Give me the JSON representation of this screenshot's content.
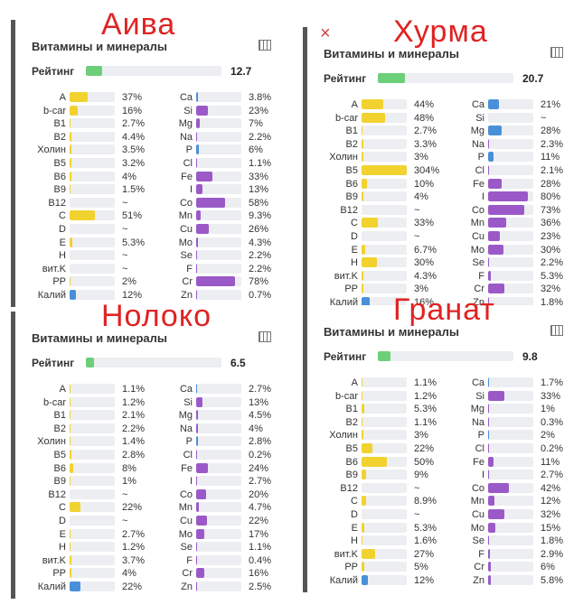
{
  "header": "Витамины и минералы",
  "rating_label": "Рейтинг",
  "rating_color": "#6ccf7a",
  "panels": [
    {
      "title": "Аива",
      "rating": 12.7,
      "left_color": "#f2d22e",
      "right_color": "#9b59c8",
      "left": [
        {
          "name": "A",
          "value": 37,
          "label": "37%"
        },
        {
          "name": "b-car",
          "value": 16,
          "label": "16%"
        },
        {
          "name": "B1",
          "value": 2.7,
          "label": "2.7%"
        },
        {
          "name": "B2",
          "value": 4.4,
          "label": "4.4%"
        },
        {
          "name": "Холин",
          "value": 3.5,
          "label": "3.5%"
        },
        {
          "name": "B5",
          "value": 3.2,
          "label": "3.2%"
        },
        {
          "name": "B6",
          "value": 4,
          "label": "4%"
        },
        {
          "name": "B9",
          "value": 1.5,
          "label": "1.5%"
        },
        {
          "name": "B12",
          "value": null,
          "label": "~"
        },
        {
          "name": "C",
          "value": 51,
          "label": "51%"
        },
        {
          "name": "D",
          "value": null,
          "label": "~"
        },
        {
          "name": "E",
          "value": 5.3,
          "label": "5.3%"
        },
        {
          "name": "H",
          "value": null,
          "label": "~"
        },
        {
          "name": "вит.K",
          "value": null,
          "label": "~"
        },
        {
          "name": "PP",
          "value": 2,
          "label": "2%"
        },
        {
          "name": "Калий",
          "value": 12,
          "label": "12%",
          "color": "#4a90d9"
        }
      ],
      "right": [
        {
          "name": "Ca",
          "value": 3.8,
          "label": "3.8%",
          "color": "#4a90d9"
        },
        {
          "name": "Si",
          "value": 23,
          "label": "23%"
        },
        {
          "name": "Mg",
          "value": 7,
          "label": "7%"
        },
        {
          "name": "Na",
          "value": 2.2,
          "label": "2.2%"
        },
        {
          "name": "P",
          "value": 6,
          "label": "6%",
          "color": "#4a90d9"
        },
        {
          "name": "Cl",
          "value": 1.1,
          "label": "1.1%"
        },
        {
          "name": "Fe",
          "value": 33,
          "label": "33%"
        },
        {
          "name": "I",
          "value": 13,
          "label": "13%"
        },
        {
          "name": "Co",
          "value": 58,
          "label": "58%"
        },
        {
          "name": "Mn",
          "value": 9.3,
          "label": "9.3%"
        },
        {
          "name": "Cu",
          "value": 26,
          "label": "26%"
        },
        {
          "name": "Mo",
          "value": 4.3,
          "label": "4.3%"
        },
        {
          "name": "Se",
          "value": 2.2,
          "label": "2.2%"
        },
        {
          "name": "F",
          "value": 2.2,
          "label": "2.2%"
        },
        {
          "name": "Cr",
          "value": 78,
          "label": "78%"
        },
        {
          "name": "Zn",
          "value": 0.7,
          "label": "0.7%"
        }
      ]
    },
    {
      "title": "Хурма",
      "rating": 20.7,
      "left_color": "#f2d22e",
      "right_color": "#9b59c8",
      "left": [
        {
          "name": "A",
          "value": 44,
          "label": "44%"
        },
        {
          "name": "b-car",
          "value": 48,
          "label": "48%"
        },
        {
          "name": "B1",
          "value": 2.7,
          "label": "2.7%"
        },
        {
          "name": "B2",
          "value": 3.3,
          "label": "3.3%"
        },
        {
          "name": "Холин",
          "value": 3,
          "label": "3%"
        },
        {
          "name": "B5",
          "value": 304,
          "label": "304%"
        },
        {
          "name": "B6",
          "value": 10,
          "label": "10%"
        },
        {
          "name": "B9",
          "value": 4,
          "label": "4%"
        },
        {
          "name": "B12",
          "value": null,
          "label": "~"
        },
        {
          "name": "C",
          "value": 33,
          "label": "33%"
        },
        {
          "name": "D",
          "value": null,
          "label": "~"
        },
        {
          "name": "E",
          "value": 6.7,
          "label": "6.7%"
        },
        {
          "name": "H",
          "value": 30,
          "label": "30%"
        },
        {
          "name": "вит.K",
          "value": 4.3,
          "label": "4.3%"
        },
        {
          "name": "PP",
          "value": 3,
          "label": "3%"
        },
        {
          "name": "Калий",
          "value": 16,
          "label": "16%",
          "color": "#4a90d9"
        }
      ],
      "right": [
        {
          "name": "Ca",
          "value": 21,
          "label": "21%",
          "color": "#4a90d9"
        },
        {
          "name": "Si",
          "value": null,
          "label": "~"
        },
        {
          "name": "Mg",
          "value": 28,
          "label": "28%",
          "color": "#4a90d9"
        },
        {
          "name": "Na",
          "value": 2.3,
          "label": "2.3%"
        },
        {
          "name": "P",
          "value": 11,
          "label": "11%",
          "color": "#4a90d9"
        },
        {
          "name": "Cl",
          "value": 2.1,
          "label": "2.1%"
        },
        {
          "name": "Fe",
          "value": 28,
          "label": "28%"
        },
        {
          "name": "I",
          "value": 80,
          "label": "80%"
        },
        {
          "name": "Co",
          "value": 73,
          "label": "73%"
        },
        {
          "name": "Mn",
          "value": 36,
          "label": "36%"
        },
        {
          "name": "Cu",
          "value": 23,
          "label": "23%"
        },
        {
          "name": "Mo",
          "value": 30,
          "label": "30%"
        },
        {
          "name": "Se",
          "value": 2.2,
          "label": "2.2%"
        },
        {
          "name": "F",
          "value": 5.3,
          "label": "5.3%"
        },
        {
          "name": "Cr",
          "value": 32,
          "label": "32%"
        },
        {
          "name": "Zn",
          "value": 1.8,
          "label": "1.8%"
        }
      ]
    },
    {
      "title": "Нолоко",
      "rating": 6.5,
      "left_color": "#f2d22e",
      "right_color": "#9b59c8",
      "left": [
        {
          "name": "A",
          "value": 1.1,
          "label": "1.1%"
        },
        {
          "name": "b-car",
          "value": 1.2,
          "label": "1.2%"
        },
        {
          "name": "B1",
          "value": 2.1,
          "label": "2.1%"
        },
        {
          "name": "B2",
          "value": 2.2,
          "label": "2.2%"
        },
        {
          "name": "Холин",
          "value": 1.4,
          "label": "1.4%"
        },
        {
          "name": "B5",
          "value": 2.8,
          "label": "2.8%"
        },
        {
          "name": "B6",
          "value": 8,
          "label": "8%"
        },
        {
          "name": "B9",
          "value": 1,
          "label": "1%"
        },
        {
          "name": "B12",
          "value": null,
          "label": "~"
        },
        {
          "name": "C",
          "value": 22,
          "label": "22%"
        },
        {
          "name": "D",
          "value": null,
          "label": "~"
        },
        {
          "name": "E",
          "value": 2.7,
          "label": "2.7%"
        },
        {
          "name": "H",
          "value": 1.2,
          "label": "1.2%"
        },
        {
          "name": "вит.K",
          "value": 3.7,
          "label": "3.7%"
        },
        {
          "name": "PP",
          "value": 4,
          "label": "4%"
        },
        {
          "name": "Калий",
          "value": 22,
          "label": "22%",
          "color": "#4a90d9"
        }
      ],
      "right": [
        {
          "name": "Ca",
          "value": 2.7,
          "label": "2.7%",
          "color": "#4a90d9"
        },
        {
          "name": "Si",
          "value": 13,
          "label": "13%"
        },
        {
          "name": "Mg",
          "value": 4.5,
          "label": "4.5%"
        },
        {
          "name": "Na",
          "value": 4,
          "label": "4%"
        },
        {
          "name": "P",
          "value": 2.8,
          "label": "2.8%",
          "color": "#4a90d9"
        },
        {
          "name": "Cl",
          "value": 0.2,
          "label": "0.2%"
        },
        {
          "name": "Fe",
          "value": 24,
          "label": "24%"
        },
        {
          "name": "I",
          "value": 2.7,
          "label": "2.7%"
        },
        {
          "name": "Co",
          "value": 20,
          "label": "20%"
        },
        {
          "name": "Mn",
          "value": 4.7,
          "label": "4.7%"
        },
        {
          "name": "Cu",
          "value": 22,
          "label": "22%"
        },
        {
          "name": "Mo",
          "value": 17,
          "label": "17%"
        },
        {
          "name": "Se",
          "value": 1.1,
          "label": "1.1%"
        },
        {
          "name": "F",
          "value": 0.4,
          "label": "0.4%"
        },
        {
          "name": "Cr",
          "value": 16,
          "label": "16%"
        },
        {
          "name": "Zn",
          "value": 2.5,
          "label": "2.5%"
        }
      ]
    },
    {
      "title": "Гранат",
      "rating": 9.8,
      "left_color": "#f2d22e",
      "right_color": "#9b59c8",
      "left": [
        {
          "name": "A",
          "value": 1.1,
          "label": "1.1%"
        },
        {
          "name": "b-car",
          "value": 1.2,
          "label": "1.2%"
        },
        {
          "name": "B1",
          "value": 5.3,
          "label": "5.3%"
        },
        {
          "name": "B2",
          "value": 1.1,
          "label": "1.1%"
        },
        {
          "name": "Холин",
          "value": 3,
          "label": "3%"
        },
        {
          "name": "B5",
          "value": 22,
          "label": "22%"
        },
        {
          "name": "B6",
          "value": 50,
          "label": "50%"
        },
        {
          "name": "B9",
          "value": 9,
          "label": "9%"
        },
        {
          "name": "B12",
          "value": null,
          "label": "~"
        },
        {
          "name": "C",
          "value": 8.9,
          "label": "8.9%"
        },
        {
          "name": "D",
          "value": null,
          "label": "~"
        },
        {
          "name": "E",
          "value": 5.3,
          "label": "5.3%"
        },
        {
          "name": "H",
          "value": 1.6,
          "label": "1.6%"
        },
        {
          "name": "вит.K",
          "value": 27,
          "label": "27%"
        },
        {
          "name": "PP",
          "value": 5,
          "label": "5%"
        },
        {
          "name": "Калий",
          "value": 12,
          "label": "12%",
          "color": "#4a90d9"
        }
      ],
      "right": [
        {
          "name": "Ca",
          "value": 1.7,
          "label": "1.7%",
          "color": "#4a90d9"
        },
        {
          "name": "Si",
          "value": 33,
          "label": "33%"
        },
        {
          "name": "Mg",
          "value": 1,
          "label": "1%"
        },
        {
          "name": "Na",
          "value": 0.3,
          "label": "0.3%"
        },
        {
          "name": "P",
          "value": 2,
          "label": "2%",
          "color": "#4a90d9"
        },
        {
          "name": "Cl",
          "value": 0.2,
          "label": "0.2%"
        },
        {
          "name": "Fe",
          "value": 11,
          "label": "11%"
        },
        {
          "name": "I",
          "value": 2.7,
          "label": "2.7%"
        },
        {
          "name": "Co",
          "value": 42,
          "label": "42%"
        },
        {
          "name": "Mn",
          "value": 12,
          "label": "12%"
        },
        {
          "name": "Cu",
          "value": 32,
          "label": "32%"
        },
        {
          "name": "Mo",
          "value": 15,
          "label": "15%"
        },
        {
          "name": "Se",
          "value": 1.8,
          "label": "1.8%"
        },
        {
          "name": "F",
          "value": 2.9,
          "label": "2.9%"
        },
        {
          "name": "Cr",
          "value": 6,
          "label": "6%"
        },
        {
          "name": "Zn",
          "value": 5.8,
          "label": "5.8%"
        }
      ]
    }
  ]
}
